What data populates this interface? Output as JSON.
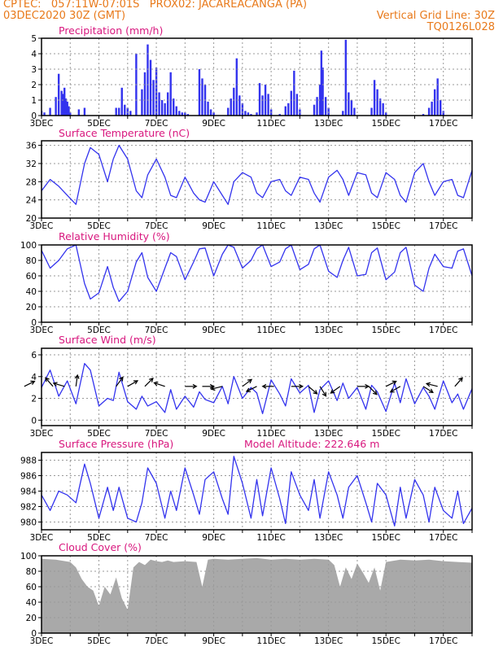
{
  "header": {
    "line1_left": "CPTEC:   057:11W-07:01S   PROX02: JACAREACANGA (PA)",
    "line2_left": "03DEC2020 30Z (GMT)",
    "line2_right": "Vertical Grid Line: 30Z",
    "line3_right": "TQ0126L028"
  },
  "colors": {
    "header": "#e8791a",
    "title": "#d8177e",
    "series": "#3333ee",
    "cloud": "#a9a9a9",
    "grid": "#999999"
  },
  "chart_data": [
    {
      "id": "precip",
      "type": "bar",
      "title": "Precipitation (mm/h)",
      "ylim": [
        0,
        5
      ],
      "yticks": [
        "0",
        "1",
        "2",
        "3",
        "4",
        "5"
      ],
      "xticks": [
        "3DEC",
        "5DEC",
        "7DEC",
        "9DEC",
        "11DEC",
        "13DEC",
        "15DEC",
        "17DEC"
      ],
      "x": [
        3.0,
        3.1,
        3.3,
        3.5,
        3.6,
        3.7,
        3.75,
        3.8,
        3.85,
        3.9,
        3.95,
        4.0,
        4.3,
        4.5,
        5.6,
        5.7,
        5.8,
        5.9,
        6.0,
        6.1,
        6.3,
        6.5,
        6.6,
        6.7,
        6.8,
        6.9,
        7.0,
        7.1,
        7.2,
        7.3,
        7.4,
        7.5,
        7.6,
        7.7,
        7.8,
        7.9,
        8.0,
        8.1,
        8.5,
        8.6,
        8.7,
        8.8,
        8.9,
        9.0,
        9.5,
        9.6,
        9.7,
        9.8,
        9.9,
        10.0,
        10.1,
        10.2,
        10.3,
        10.5,
        10.6,
        10.7,
        10.8,
        10.9,
        11.0,
        11.3,
        11.5,
        11.6,
        11.7,
        11.8,
        11.9,
        12.0,
        12.5,
        12.6,
        12.7,
        12.75,
        12.8,
        12.9,
        13.0,
        13.5,
        13.6,
        13.7,
        13.8,
        13.9,
        14.5,
        14.6,
        14.7,
        14.8,
        14.9,
        15.0,
        16.3,
        16.5,
        16.6,
        16.7,
        16.8,
        16.9,
        17.0
      ],
      "values": [
        0.3,
        0.2,
        0.5,
        1.2,
        2.7,
        1.6,
        1.4,
        1.8,
        1.1,
        0.9,
        0.6,
        0.2,
        0.4,
        0.5,
        0.5,
        0.5,
        1.8,
        0.7,
        0.5,
        0.3,
        4.0,
        1.7,
        2.8,
        4.6,
        3.6,
        2.3,
        3.1,
        1.5,
        1.0,
        0.8,
        1.5,
        2.8,
        1.1,
        0.6,
        0.3,
        0.2,
        0.2,
        0.1,
        3.0,
        2.4,
        2.0,
        0.9,
        0.4,
        0.2,
        0.5,
        1.1,
        1.8,
        3.7,
        1.3,
        0.8,
        0.3,
        0.2,
        0.1,
        0.2,
        2.1,
        1.3,
        2.0,
        1.4,
        0.4,
        0.1,
        0.6,
        0.8,
        1.6,
        2.9,
        1.4,
        0.4,
        0.7,
        1.2,
        2.0,
        4.2,
        3.1,
        1.2,
        0.5,
        0.3,
        4.9,
        1.5,
        1.0,
        0.5,
        0.5,
        2.3,
        1.7,
        1.1,
        0.8,
        0.2,
        0.1,
        0.5,
        0.9,
        1.7,
        2.4,
        1.0,
        0.3
      ]
    },
    {
      "id": "temp",
      "type": "line",
      "title": "Surface Temperature (nC)",
      "ylim": [
        20,
        37
      ],
      "yticks": [
        "20",
        "24",
        "28",
        "32",
        "36"
      ],
      "xticks": [
        "3DEC",
        "5DEC",
        "7DEC",
        "9DEC",
        "11DEC",
        "13DEC",
        "15DEC",
        "17DEC"
      ],
      "x": [
        2.0,
        2.3,
        2.6,
        2.8,
        3.0,
        3.3,
        3.6,
        3.9,
        4.2,
        4.5,
        4.7,
        5.0,
        5.3,
        5.5,
        5.7,
        6.0,
        6.3,
        6.5,
        6.7,
        7.0,
        7.3,
        7.5,
        7.7,
        8.0,
        8.3,
        8.5,
        8.7,
        9.0,
        9.3,
        9.5,
        9.7,
        10.0,
        10.3,
        10.5,
        10.7,
        11.0,
        11.3,
        11.5,
        11.7,
        12.0,
        12.3,
        12.5,
        12.7,
        13.0,
        13.3,
        13.5,
        13.7,
        14.0,
        14.3,
        14.5,
        14.7,
        15.0,
        15.3,
        15.5,
        15.7,
        16.0,
        16.3,
        16.5,
        16.7,
        17.0,
        17.3,
        17.5,
        17.7,
        18.0
      ],
      "values": [
        22.5,
        21.5,
        20.8,
        23.0,
        26.0,
        28.5,
        27.0,
        25.0,
        23.0,
        32.0,
        35.5,
        34.0,
        28.0,
        33.0,
        36.0,
        33.0,
        26.0,
        24.5,
        29.5,
        33.0,
        29.0,
        25.0,
        24.5,
        29.0,
        25.5,
        24.0,
        23.5,
        28.0,
        25.0,
        23.0,
        28.0,
        30.0,
        29.0,
        25.5,
        24.5,
        28.0,
        28.5,
        26.0,
        25.0,
        29.0,
        28.5,
        25.5,
        23.5,
        29.0,
        30.5,
        28.5,
        25.0,
        30.0,
        29.5,
        25.5,
        24.5,
        30.0,
        28.5,
        25.0,
        23.5,
        30.0,
        32.0,
        28.0,
        25.0,
        28.0,
        28.5,
        25.0,
        24.5,
        30.5
      ]
    },
    {
      "id": "rh",
      "type": "line",
      "title": "Relative Humidity (%)",
      "ylim": [
        0,
        100
      ],
      "yticks": [
        "0",
        "20",
        "40",
        "60",
        "80",
        "100"
      ],
      "xticks": [
        "3DEC",
        "5DEC",
        "7DEC",
        "9DEC",
        "11DEC",
        "13DEC",
        "15DEC",
        "17DEC"
      ],
      "x": [
        2.0,
        2.3,
        2.6,
        2.8,
        3.0,
        3.3,
        3.6,
        3.9,
        4.2,
        4.5,
        4.7,
        5.0,
        5.3,
        5.5,
        5.7,
        6.0,
        6.3,
        6.5,
        6.7,
        7.0,
        7.3,
        7.5,
        7.7,
        8.0,
        8.3,
        8.5,
        8.7,
        9.0,
        9.3,
        9.5,
        9.7,
        10.0,
        10.3,
        10.5,
        10.7,
        11.0,
        11.3,
        11.5,
        11.7,
        12.0,
        12.3,
        12.5,
        12.7,
        13.0,
        13.3,
        13.5,
        13.7,
        14.0,
        14.3,
        14.5,
        14.7,
        15.0,
        15.3,
        15.5,
        15.7,
        16.0,
        16.3,
        16.5,
        16.7,
        17.0,
        17.3,
        17.5,
        17.7,
        18.0
      ],
      "values": [
        92,
        96,
        100,
        100,
        93,
        70,
        80,
        95,
        100,
        50,
        30,
        38,
        72,
        45,
        27,
        40,
        78,
        90,
        58,
        40,
        70,
        90,
        85,
        55,
        78,
        95,
        96,
        60,
        88,
        100,
        97,
        70,
        80,
        95,
        100,
        72,
        78,
        95,
        100,
        68,
        75,
        95,
        100,
        66,
        58,
        80,
        97,
        60,
        62,
        90,
        96,
        55,
        65,
        90,
        97,
        48,
        40,
        70,
        88,
        72,
        70,
        92,
        95,
        60
      ]
    },
    {
      "id": "wind",
      "type": "line",
      "title": "Surface Wind (m/s)",
      "ylim": [
        -0.5,
        6.6
      ],
      "yticks": [
        "0",
        "2",
        "4",
        "6"
      ],
      "xticks": [
        "3DEC",
        "5DEC",
        "7DEC",
        "9DEC",
        "11DEC",
        "13DEC",
        "15DEC",
        "17DEC"
      ],
      "x": [
        2.0,
        2.3,
        2.6,
        2.8,
        3.0,
        3.3,
        3.6,
        3.9,
        4.2,
        4.5,
        4.7,
        5.0,
        5.3,
        5.5,
        5.7,
        6.0,
        6.3,
        6.5,
        6.7,
        7.0,
        7.3,
        7.5,
        7.7,
        8.0,
        8.3,
        8.5,
        8.7,
        9.0,
        9.3,
        9.5,
        9.7,
        10.0,
        10.3,
        10.5,
        10.7,
        11.0,
        11.3,
        11.5,
        11.7,
        12.0,
        12.3,
        12.5,
        12.7,
        13.0,
        13.3,
        13.5,
        13.7,
        14.0,
        14.3,
        14.5,
        14.7,
        15.0,
        15.3,
        15.5,
        15.7,
        16.0,
        16.3,
        16.5,
        16.7,
        17.0,
        17.3,
        17.5,
        17.7,
        18.0
      ],
      "values": [
        2.1,
        2.4,
        1.8,
        2.7,
        3.0,
        4.6,
        2.2,
        3.6,
        1.5,
        5.2,
        4.6,
        1.3,
        2.0,
        1.8,
        4.4,
        1.7,
        1.0,
        2.2,
        1.3,
        1.7,
        0.7,
        2.8,
        1.0,
        2.2,
        1.2,
        2.6,
        1.9,
        1.6,
        3.1,
        1.5,
        4.0,
        2.0,
        3.0,
        2.5,
        0.6,
        3.7,
        2.4,
        1.3,
        3.8,
        2.5,
        3.2,
        0.7,
        2.8,
        3.6,
        1.8,
        3.4,
        2.0,
        3.0,
        1.0,
        3.2,
        2.6,
        0.8,
        3.4,
        1.6,
        3.8,
        1.5,
        3.0,
        2.2,
        1.0,
        3.6,
        1.6,
        2.4,
        1.0,
        2.9
      ],
      "arrows": [
        {
          "x": 2.4,
          "u": 1.6,
          "v": 0.8
        },
        {
          "x": 3.4,
          "u": -0.7,
          "v": 0.8
        },
        {
          "x": 3.8,
          "u": -0.7,
          "v": 0.2
        },
        {
          "x": 4.2,
          "u": 0.2,
          "v": 1.5
        },
        {
          "x": 5.6,
          "u": 0.8,
          "v": 1.1
        },
        {
          "x": 6.0,
          "u": 0.7,
          "v": 0.4
        },
        {
          "x": 6.6,
          "u": 0.8,
          "v": 0.8
        },
        {
          "x": 7.3,
          "u": -0.9,
          "v": 0.3
        },
        {
          "x": 8.0,
          "u": 0.8,
          "v": 0.0
        },
        {
          "x": 8.6,
          "u": 0.9,
          "v": 0.0
        },
        {
          "x": 9.3,
          "u": -0.8,
          "v": -0.2
        },
        {
          "x": 10.0,
          "u": 0.8,
          "v": 0.6
        },
        {
          "x": 10.5,
          "u": -0.8,
          "v": -0.4
        },
        {
          "x": 11.1,
          "u": -0.9,
          "v": 0.0
        },
        {
          "x": 11.7,
          "u": 0.8,
          "v": 0.0
        },
        {
          "x": 12.3,
          "u": 0.7,
          "v": -0.6
        },
        {
          "x": 12.7,
          "u": 0.5,
          "v": -0.8
        },
        {
          "x": 13.4,
          "u": -0.7,
          "v": -0.5
        },
        {
          "x": 14.0,
          "u": 0.7,
          "v": 0.0
        },
        {
          "x": 14.4,
          "u": 0.6,
          "v": -0.6
        },
        {
          "x": 15.0,
          "u": 0.8,
          "v": 0.4
        },
        {
          "x": 15.5,
          "u": -0.7,
          "v": -0.4
        },
        {
          "x": 16.3,
          "u": 0.8,
          "v": -0.5
        },
        {
          "x": 16.8,
          "u": -0.8,
          "v": 0.2
        },
        {
          "x": 17.4,
          "u": 0.7,
          "v": 0.8
        }
      ]
    },
    {
      "id": "pres",
      "type": "line",
      "title": "Surface Pressure (hPa)",
      "subtitle": "Model Altitude: 222.646  m",
      "ylim": [
        979,
        989
      ],
      "yticks": [
        "980",
        "982",
        "984",
        "986",
        "988"
      ],
      "xticks": [
        "3DEC",
        "5DEC",
        "7DEC",
        "9DEC",
        "11DEC",
        "13DEC",
        "15DEC",
        "17DEC"
      ],
      "x": [
        2.0,
        2.3,
        2.6,
        2.8,
        3.0,
        3.3,
        3.6,
        3.9,
        4.2,
        4.5,
        4.7,
        5.0,
        5.3,
        5.5,
        5.7,
        6.0,
        6.3,
        6.5,
        6.7,
        7.0,
        7.3,
        7.5,
        7.7,
        8.0,
        8.3,
        8.5,
        8.7,
        9.0,
        9.3,
        9.5,
        9.7,
        10.0,
        10.3,
        10.5,
        10.7,
        11.0,
        11.3,
        11.5,
        11.7,
        12.0,
        12.3,
        12.5,
        12.7,
        13.0,
        13.3,
        13.5,
        13.7,
        14.0,
        14.3,
        14.5,
        14.7,
        15.0,
        15.3,
        15.5,
        15.7,
        16.0,
        16.3,
        16.5,
        16.7,
        17.0,
        17.3,
        17.5,
        17.7,
        18.0
      ],
      "values": [
        984.3,
        984.0,
        985.5,
        986.5,
        983.5,
        981.5,
        984.0,
        983.5,
        982.5,
        987.5,
        985.0,
        980.5,
        984.5,
        981.5,
        984.5,
        980.5,
        980.0,
        982.5,
        987.0,
        985.0,
        980.5,
        984.0,
        981.5,
        987.0,
        983.5,
        981.0,
        985.5,
        986.5,
        983.0,
        981.0,
        988.5,
        985.0,
        980.5,
        985.5,
        980.8,
        987.0,
        983.0,
        979.8,
        986.5,
        983.5,
        981.5,
        985.5,
        980.5,
        986.5,
        983.5,
        980.5,
        984.5,
        986.0,
        982.5,
        980.0,
        985.0,
        983.5,
        979.5,
        984.5,
        980.5,
        985.5,
        983.5,
        980.0,
        984.5,
        981.5,
        980.5,
        984.0,
        979.8,
        981.8
      ]
    },
    {
      "id": "cloud",
      "type": "area",
      "title": "Cloud Cover (%)",
      "ylim": [
        0,
        100
      ],
      "yticks": [
        "0",
        "20",
        "40",
        "60",
        "80",
        "100"
      ],
      "xticks": [
        "3DEC",
        "5DEC",
        "7DEC",
        "9DEC",
        "11DEC",
        "13DEC",
        "15DEC",
        "17DEC"
      ],
      "x": [
        2.0,
        2.5,
        3.0,
        3.5,
        4.0,
        4.2,
        4.4,
        4.6,
        4.8,
        5.0,
        5.2,
        5.4,
        5.6,
        5.8,
        6.0,
        6.2,
        6.4,
        6.6,
        6.8,
        7.0,
        7.2,
        7.4,
        7.6,
        8.0,
        8.4,
        8.6,
        8.8,
        9.0,
        9.5,
        10.0,
        10.5,
        11.0,
        11.5,
        12.0,
        12.5,
        13.0,
        13.2,
        13.4,
        13.6,
        13.8,
        14.0,
        14.2,
        14.4,
        14.6,
        14.8,
        15.0,
        15.5,
        16.0,
        16.5,
        17.0,
        17.5,
        18.0
      ],
      "values": [
        95,
        94,
        96,
        95,
        92,
        85,
        70,
        60,
        55,
        35,
        60,
        50,
        72,
        45,
        30,
        85,
        92,
        88,
        95,
        93,
        92,
        94,
        92,
        93,
        92,
        60,
        95,
        96,
        95,
        96,
        97,
        95,
        96,
        95,
        96,
        95,
        88,
        60,
        85,
        70,
        90,
        78,
        65,
        85,
        55,
        92,
        95,
        94,
        95,
        93,
        92,
        91
      ]
    }
  ]
}
